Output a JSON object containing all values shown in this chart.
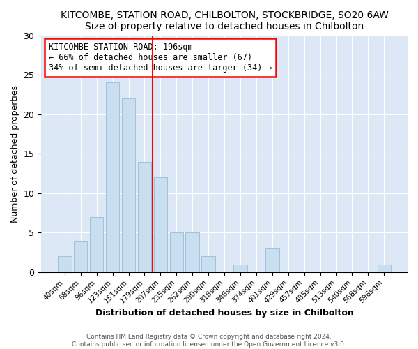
{
  "title": "KITCOMBE, STATION ROAD, CHILBOLTON, STOCKBRIDGE, SO20 6AW",
  "subtitle": "Size of property relative to detached houses in Chilbolton",
  "xlabel": "Distribution of detached houses by size in Chilbolton",
  "ylabel": "Number of detached properties",
  "bar_labels": [
    "40sqm",
    "68sqm",
    "96sqm",
    "123sqm",
    "151sqm",
    "179sqm",
    "207sqm",
    "235sqm",
    "262sqm",
    "290sqm",
    "318sqm",
    "346sqm",
    "374sqm",
    "401sqm",
    "429sqm",
    "457sqm",
    "485sqm",
    "513sqm",
    "540sqm",
    "568sqm",
    "596sqm"
  ],
  "bar_values": [
    2,
    4,
    7,
    24,
    22,
    14,
    12,
    5,
    5,
    2,
    0,
    1,
    0,
    3,
    0,
    0,
    0,
    0,
    0,
    0,
    1
  ],
  "bar_color": "#c9dff0",
  "bar_edgecolor": "#a0c0dc",
  "vline_x": 5.5,
  "vline_color": "red",
  "annotation_title": "KITCOMBE STATION ROAD: 196sqm",
  "annotation_line1": "← 66% of detached houses are smaller (67)",
  "annotation_line2": "34% of semi-detached houses are larger (34) →",
  "annotation_box_facecolor": "white",
  "annotation_box_edgecolor": "red",
  "ylim": [
    0,
    30
  ],
  "yticks": [
    0,
    5,
    10,
    15,
    20,
    25,
    30
  ],
  "footer1": "Contains HM Land Registry data © Crown copyright and database right 2024.",
  "footer2": "Contains public sector information licensed under the Open Government Licence v3.0.",
  "plot_bg_color": "#dce8f5",
  "fig_bg_color": "white",
  "grid_color": "white",
  "title_fontsize": 10,
  "annotation_fontsize": 8.5
}
